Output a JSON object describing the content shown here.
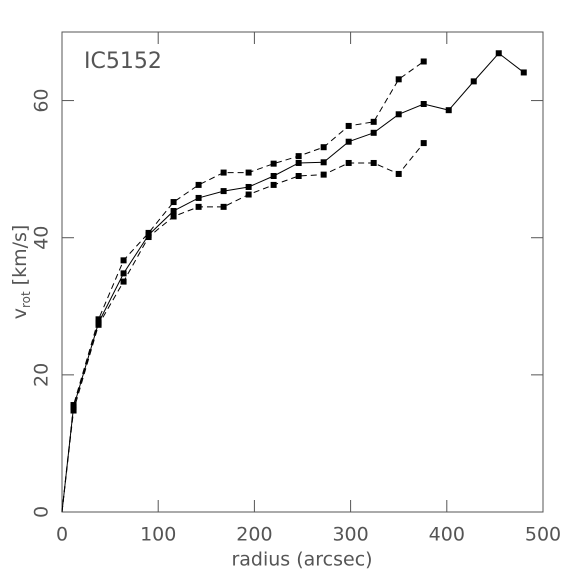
{
  "chart_data": {
    "type": "line",
    "annotation": "IC5152",
    "x_label": "radius (arcsec)",
    "y_label": {
      "main": "v",
      "sub": "rot",
      "unit": "[km/s]"
    },
    "xlim": [
      0,
      500
    ],
    "xticks": [
      0,
      100,
      200,
      300,
      400,
      500
    ],
    "ylim": [
      0,
      70
    ],
    "yticks": [
      0,
      20,
      40,
      60
    ],
    "color": "#000000",
    "axis_color": "#555555",
    "series": [
      {
        "dashed": false,
        "x": [
          0,
          12,
          38,
          64,
          90,
          116,
          142,
          168,
          194,
          220,
          246,
          272,
          298,
          324,
          350,
          376,
          402,
          428,
          454,
          480
        ],
        "values": [
          0,
          15.3,
          27.6,
          34.8,
          40.4,
          43.9,
          45.8,
          46.8,
          47.4,
          49.0,
          50.9,
          51.0,
          54.0,
          55.3,
          58.0,
          59.5,
          58.6,
          62.8,
          66.9,
          64.1
        ]
      },
      {
        "dashed": true,
        "x": [
          0,
          12,
          38,
          64,
          90,
          116,
          142,
          168,
          194,
          220,
          246,
          272,
          298,
          324,
          350,
          376
        ],
        "values": [
          0,
          15.6,
          28.1,
          36.7,
          40.7,
          45.2,
          47.7,
          49.5,
          49.5,
          50.8,
          51.9,
          53.2,
          56.3,
          56.9,
          63.1,
          65.7
        ]
      },
      {
        "dashed": true,
        "x": [
          0,
          12,
          38,
          64,
          90,
          116,
          142,
          168,
          194,
          220,
          246,
          272,
          298,
          324,
          350,
          376
        ],
        "values": [
          0,
          14.8,
          27.3,
          33.6,
          40.1,
          43.1,
          44.5,
          44.5,
          46.3,
          47.7,
          49.0,
          49.2,
          50.9,
          50.9,
          49.3,
          53.8
        ]
      }
    ]
  }
}
